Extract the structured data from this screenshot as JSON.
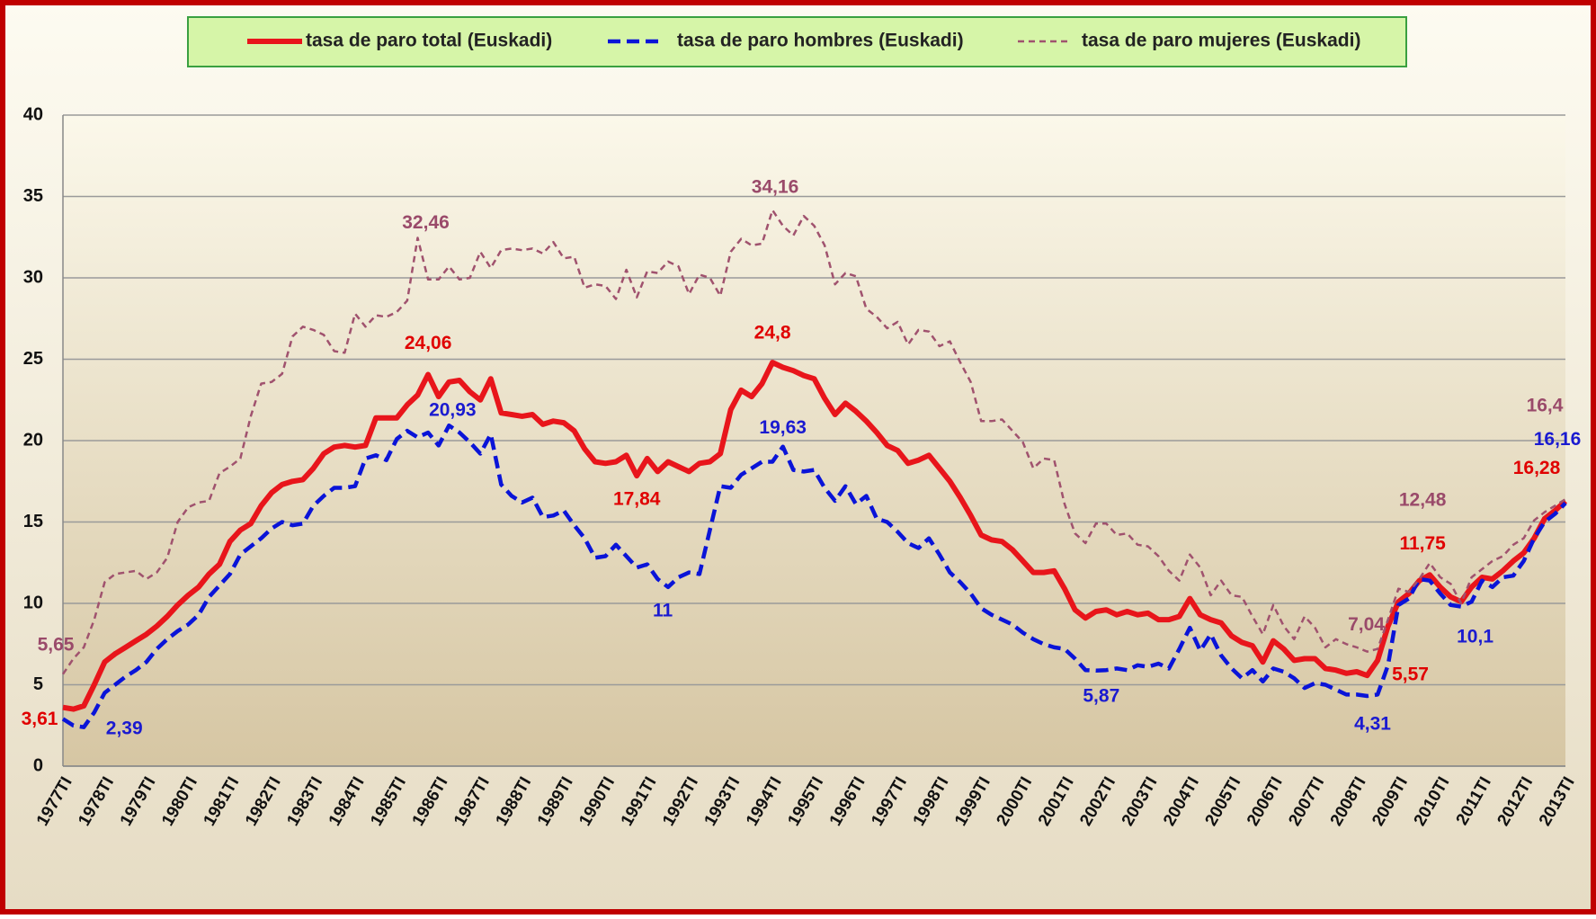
{
  "chart_data": {
    "type": "line",
    "categories": [
      "1977TI",
      null,
      null,
      null,
      "1978TI",
      null,
      null,
      null,
      "1979TI",
      null,
      null,
      null,
      "1980TI",
      null,
      null,
      null,
      "1981TI",
      null,
      null,
      null,
      "1982TI",
      null,
      null,
      null,
      "1983TI",
      null,
      null,
      null,
      "1984TI",
      null,
      null,
      null,
      "1985TI",
      null,
      null,
      null,
      "1986TI",
      null,
      null,
      null,
      "1987TI",
      null,
      null,
      null,
      "1988TI",
      null,
      null,
      null,
      "1989TI",
      null,
      null,
      null,
      "1990TI",
      null,
      null,
      null,
      "1991TI",
      null,
      null,
      null,
      "1992TI",
      null,
      null,
      null,
      "1993TI",
      null,
      null,
      null,
      "1994TI",
      null,
      null,
      null,
      "1995TI",
      null,
      null,
      null,
      "1996TI",
      null,
      null,
      null,
      "1997TI",
      null,
      null,
      null,
      "1998TI",
      null,
      null,
      null,
      "1999TI",
      null,
      null,
      null,
      "2000TI",
      null,
      null,
      null,
      "2001TI",
      null,
      null,
      null,
      "2002TI",
      null,
      null,
      null,
      "2003TI",
      null,
      null,
      null,
      "2004TI",
      null,
      null,
      null,
      "2005TI",
      null,
      null,
      null,
      "2006TI",
      null,
      null,
      null,
      "2007TI",
      null,
      null,
      null,
      "2008TI",
      null,
      null,
      null,
      "2009TI",
      null,
      null,
      null,
      "2010TI",
      null,
      null,
      null,
      "2011TI",
      null,
      null,
      null,
      "2012TI",
      null,
      null,
      null,
      "2013TI"
    ],
    "series": [
      {
        "name": "tasa de paro total (Euskadi)",
        "color": "#e8151b",
        "values": [
          3.61,
          3.5,
          3.7,
          5.0,
          6.4,
          6.9,
          7.3,
          7.7,
          8.1,
          8.6,
          9.2,
          9.9,
          10.5,
          11.0,
          11.8,
          12.4,
          13.8,
          14.5,
          14.9,
          16.0,
          16.8,
          17.3,
          17.5,
          17.6,
          18.3,
          19.2,
          19.6,
          19.7,
          19.6,
          19.7,
          21.4,
          21.4,
          21.4,
          22.2,
          22.8,
          24.06,
          22.7,
          23.6,
          23.7,
          23.0,
          22.5,
          23.8,
          21.7,
          21.6,
          21.5,
          21.6,
          21.0,
          21.2,
          21.1,
          20.6,
          19.5,
          18.7,
          18.6,
          18.7,
          19.1,
          17.84,
          18.9,
          18.1,
          18.7,
          18.4,
          18.1,
          18.6,
          18.7,
          19.2,
          21.9,
          23.1,
          22.7,
          23.5,
          24.8,
          24.5,
          24.3,
          24.0,
          23.8,
          22.6,
          21.6,
          22.3,
          21.8,
          21.2,
          20.5,
          19.7,
          19.4,
          18.6,
          18.8,
          19.1,
          18.3,
          17.5,
          16.5,
          15.4,
          14.2,
          13.9,
          13.8,
          13.3,
          12.6,
          11.9,
          11.9,
          12.0,
          10.9,
          9.6,
          9.1,
          9.5,
          9.6,
          9.3,
          9.5,
          9.3,
          9.4,
          9.0,
          9.0,
          9.2,
          10.3,
          9.3,
          9.0,
          8.8,
          8.0,
          7.6,
          7.4,
          6.4,
          7.7,
          7.2,
          6.5,
          6.6,
          6.6,
          6.0,
          5.9,
          5.7,
          5.8,
          5.57,
          6.5,
          8.6,
          10.1,
          10.6,
          11.4,
          11.75,
          11.0,
          10.4,
          10.1,
          11.0,
          11.6,
          11.5,
          12.0,
          12.6,
          13.1,
          14.0,
          15.2,
          15.7,
          16.28
        ],
        "value_labels": [
          "3,61",
          null,
          null,
          null,
          null,
          null,
          null,
          null,
          null,
          null,
          null,
          null,
          null,
          null,
          null,
          null,
          null,
          null,
          null,
          null,
          null,
          null,
          null,
          null,
          null,
          null,
          null,
          null,
          null,
          null,
          null,
          null,
          null,
          null,
          null,
          "24,06",
          null,
          null,
          null,
          null,
          null,
          null,
          null,
          null,
          null,
          null,
          null,
          null,
          null,
          null,
          null,
          null,
          null,
          null,
          null,
          "17,84",
          null,
          null,
          null,
          null,
          null,
          null,
          null,
          null,
          null,
          null,
          null,
          null,
          "24,8",
          null,
          null,
          null,
          null,
          null,
          null,
          null,
          null,
          null,
          null,
          null,
          null,
          null,
          null,
          null,
          null,
          null,
          null,
          null,
          null,
          null,
          null,
          null,
          null,
          null,
          null,
          null,
          null,
          null,
          null,
          null,
          null,
          null,
          null,
          null,
          null,
          null,
          null,
          null,
          null,
          null,
          null,
          null,
          null,
          null,
          null,
          null,
          null,
          null,
          null,
          null,
          null,
          null,
          null,
          null,
          null,
          "5,57",
          null,
          null,
          null,
          null,
          null,
          "11,75",
          null,
          null,
          null,
          null,
          null,
          null,
          null,
          null,
          null,
          null,
          null,
          null,
          "16,28"
        ]
      },
      {
        "name": "tasa de paro hombres (Euskadi)",
        "color": "#0a14d8",
        "values": [
          2.9,
          2.5,
          2.39,
          3.3,
          4.5,
          5.0,
          5.5,
          5.9,
          6.4,
          7.2,
          7.8,
          8.3,
          8.7,
          9.3,
          10.4,
          11.1,
          11.8,
          13.0,
          13.5,
          14.0,
          14.6,
          15.0,
          14.8,
          14.9,
          16.0,
          16.6,
          17.1,
          17.1,
          17.2,
          18.9,
          19.1,
          18.8,
          20.1,
          20.6,
          20.2,
          20.5,
          19.7,
          20.93,
          20.5,
          19.9,
          19.2,
          20.4,
          17.3,
          16.6,
          16.2,
          16.5,
          15.3,
          15.4,
          15.7,
          14.8,
          14.0,
          12.8,
          12.9,
          13.6,
          12.9,
          12.2,
          12.4,
          11.5,
          11,
          11.6,
          11.9,
          11.8,
          14.5,
          17.2,
          17.1,
          17.9,
          18.3,
          18.7,
          18.7,
          19.63,
          18.2,
          18.1,
          18.2,
          17.1,
          16.3,
          17.2,
          16.1,
          16.6,
          15.2,
          15.0,
          14.4,
          13.7,
          13.4,
          14.0,
          13.0,
          11.9,
          11.3,
          10.6,
          9.7,
          9.3,
          9.0,
          8.7,
          8.2,
          7.8,
          7.5,
          7.3,
          7.2,
          6.6,
          5.9,
          5.87,
          5.9,
          6.0,
          5.9,
          6.2,
          6.1,
          6.3,
          6.0,
          7.2,
          8.5,
          7.1,
          8.1,
          6.8,
          6.0,
          5.4,
          5.9,
          5.2,
          6.0,
          5.8,
          5.4,
          4.8,
          5.1,
          5.0,
          4.7,
          4.4,
          4.4,
          4.31,
          4.4,
          6.2,
          9.9,
          10.3,
          11.5,
          11.4,
          10.6,
          9.9,
          9.8,
          10.1,
          11.4,
          11.0,
          11.6,
          11.7,
          12.6,
          14.0,
          15.0,
          15.5,
          16.16
        ],
        "value_labels": [
          null,
          null,
          "2,39",
          null,
          null,
          null,
          null,
          null,
          null,
          null,
          null,
          null,
          null,
          null,
          null,
          null,
          null,
          null,
          null,
          null,
          null,
          null,
          null,
          null,
          null,
          null,
          null,
          null,
          null,
          null,
          null,
          null,
          null,
          null,
          null,
          null,
          null,
          "20,93",
          null,
          null,
          null,
          null,
          null,
          null,
          null,
          null,
          null,
          null,
          null,
          null,
          null,
          null,
          null,
          null,
          null,
          null,
          null,
          null,
          "11",
          null,
          null,
          null,
          null,
          null,
          null,
          null,
          null,
          null,
          null,
          "19,63",
          null,
          null,
          null,
          null,
          null,
          null,
          null,
          null,
          null,
          null,
          null,
          null,
          null,
          null,
          null,
          null,
          null,
          null,
          null,
          null,
          null,
          null,
          null,
          null,
          null,
          null,
          null,
          null,
          null,
          "5,87",
          null,
          null,
          null,
          null,
          null,
          null,
          null,
          null,
          null,
          null,
          null,
          null,
          null,
          null,
          null,
          null,
          null,
          null,
          null,
          null,
          null,
          null,
          null,
          null,
          null,
          "4,31",
          null,
          null,
          null,
          null,
          null,
          null,
          null,
          null,
          null,
          "10,1",
          null,
          null,
          null,
          null,
          null,
          null,
          null,
          null,
          "16,16"
        ]
      },
      {
        "name": "tasa de paro mujeres (Euskadi)",
        "color": "#a0526e",
        "values": [
          5.65,
          6.6,
          7.3,
          9.0,
          11.3,
          11.8,
          11.9,
          12.0,
          11.5,
          11.9,
          12.8,
          15.0,
          15.9,
          16.2,
          16.3,
          18.0,
          18.4,
          18.9,
          21.5,
          23.5,
          23.6,
          24.1,
          26.4,
          27.0,
          26.8,
          26.5,
          25.5,
          25.4,
          27.8,
          27.0,
          27.7,
          27.6,
          27.9,
          28.6,
          32.46,
          29.9,
          29.9,
          30.7,
          29.9,
          30.0,
          31.6,
          30.6,
          31.7,
          31.8,
          31.7,
          31.8,
          31.5,
          32.2,
          31.2,
          31.3,
          29.4,
          29.6,
          29.5,
          28.7,
          30.5,
          28.8,
          30.4,
          30.3,
          31.0,
          30.7,
          29.0,
          30.2,
          30.0,
          28.9,
          31.6,
          32.4,
          32.0,
          32.1,
          34.16,
          33.2,
          32.6,
          33.8,
          33.2,
          32.0,
          29.6,
          30.3,
          30.1,
          28.1,
          27.6,
          26.9,
          27.3,
          25.9,
          26.8,
          26.7,
          25.8,
          26.1,
          24.8,
          23.6,
          21.2,
          21.2,
          21.3,
          20.6,
          19.9,
          18.3,
          18.9,
          18.8,
          16.1,
          14.3,
          13.7,
          14.9,
          14.9,
          14.2,
          14.3,
          13.6,
          13.5,
          12.9,
          12.0,
          11.4,
          13.0,
          12.2,
          10.5,
          11.4,
          10.5,
          10.4,
          9.2,
          8.1,
          9.9,
          8.6,
          7.8,
          9.2,
          8.5,
          7.3,
          7.8,
          7.5,
          7.3,
          7.04,
          7.2,
          9.0,
          10.9,
          10.7,
          11.5,
          12.48,
          11.6,
          11.2,
          10.0,
          11.6,
          12.1,
          12.6,
          12.9,
          13.6,
          14.0,
          15.1,
          15.6,
          16.0,
          16.4
        ],
        "value_labels": [
          "5,65",
          null,
          null,
          null,
          null,
          null,
          null,
          null,
          null,
          null,
          null,
          null,
          null,
          null,
          null,
          null,
          null,
          null,
          null,
          null,
          null,
          null,
          null,
          null,
          null,
          null,
          null,
          null,
          null,
          null,
          null,
          null,
          null,
          null,
          "32,46",
          null,
          null,
          null,
          null,
          null,
          null,
          null,
          null,
          null,
          null,
          null,
          null,
          null,
          null,
          null,
          null,
          null,
          null,
          null,
          null,
          null,
          null,
          null,
          null,
          null,
          null,
          null,
          null,
          null,
          null,
          null,
          null,
          null,
          "34,16",
          null,
          null,
          null,
          null,
          null,
          null,
          null,
          null,
          null,
          null,
          null,
          null,
          null,
          null,
          null,
          null,
          null,
          null,
          null,
          null,
          null,
          null,
          null,
          null,
          null,
          null,
          null,
          null,
          null,
          null,
          null,
          null,
          null,
          null,
          null,
          null,
          null,
          null,
          null,
          null,
          null,
          null,
          null,
          null,
          null,
          null,
          null,
          null,
          null,
          null,
          null,
          null,
          null,
          null,
          null,
          null,
          "7,04",
          null,
          null,
          null,
          null,
          null,
          "12,48",
          null,
          null,
          null,
          null,
          null,
          null,
          null,
          null,
          null,
          null,
          null,
          null,
          "16,4"
        ]
      }
    ],
    "ylim": [
      0,
      40
    ],
    "yticks": [
      0,
      5,
      10,
      15,
      20,
      25,
      30,
      35,
      40
    ],
    "grid": true,
    "legend": "top"
  }
}
